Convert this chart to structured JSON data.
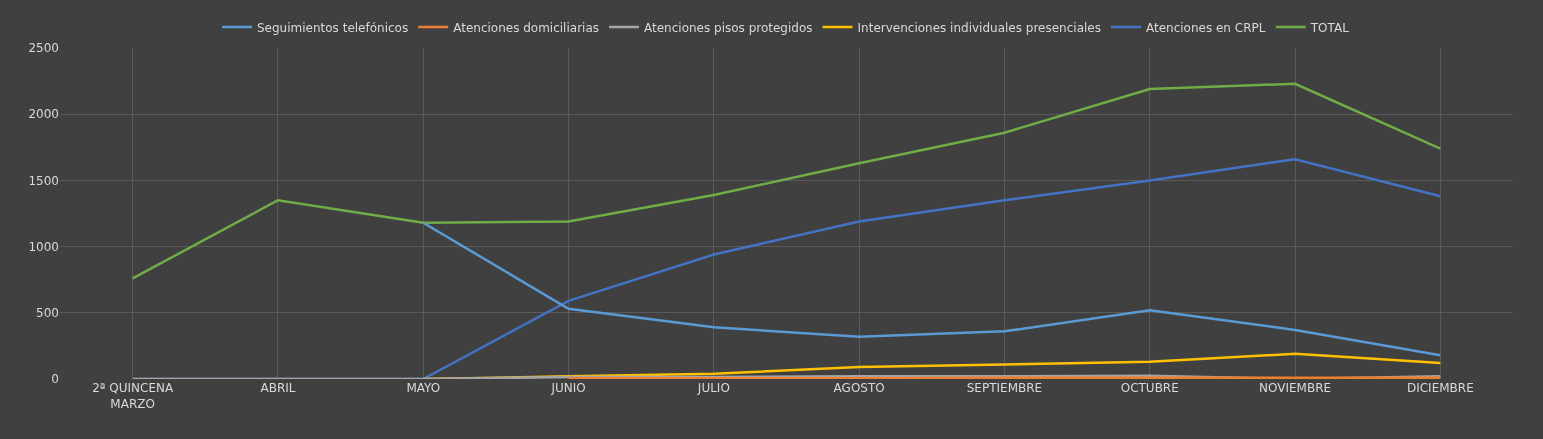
{
  "chart_data": {
    "type": "line",
    "categories": [
      "2ª QUINCENA\nMARZO",
      "ABRIL",
      "MAYO",
      "JUNIO",
      "JULIO",
      "AGOSTO",
      "SEPTIEMBRE",
      "OCTUBRE",
      "NOVIEMBRE",
      "DICIEMBRE"
    ],
    "series": [
      {
        "name": "Seguimientos telefónicos",
        "color": "#5b9bd5",
        "values": [
          null,
          null,
          1180,
          530,
          390,
          320,
          360,
          520,
          370,
          180
        ]
      },
      {
        "name": "Atenciones domiciliarias",
        "color": "#ed7d31",
        "values": [
          null,
          null,
          null,
          5,
          5,
          5,
          10,
          10,
          10,
          10
        ]
      },
      {
        "name": "Atenciones pisos protegidos",
        "color": "#a5a5a5",
        "values": [
          0,
          0,
          0,
          15,
          15,
          20,
          20,
          25,
          0,
          20
        ]
      },
      {
        "name": "Intervenciones individuales presenciales",
        "color": "#ffc000",
        "values": [
          null,
          null,
          0,
          20,
          40,
          90,
          110,
          130,
          190,
          120
        ]
      },
      {
        "name": "Atenciones en CRPL",
        "color": "#4472c4",
        "values": [
          0,
          0,
          0,
          590,
          940,
          1190,
          1350,
          1500,
          1660,
          1380
        ]
      },
      {
        "name": "TOTAL",
        "color": "#70ad47",
        "values": [
          760,
          1350,
          1180,
          1190,
          1390,
          1630,
          1860,
          2190,
          2230,
          1740
        ]
      }
    ],
    "ylim": [
      0,
      2500
    ],
    "yticks": [
      0,
      500,
      1000,
      1500,
      2000,
      2500
    ],
    "grid": true,
    "legend": "top",
    "marker": "none",
    "line_style": "solid"
  }
}
